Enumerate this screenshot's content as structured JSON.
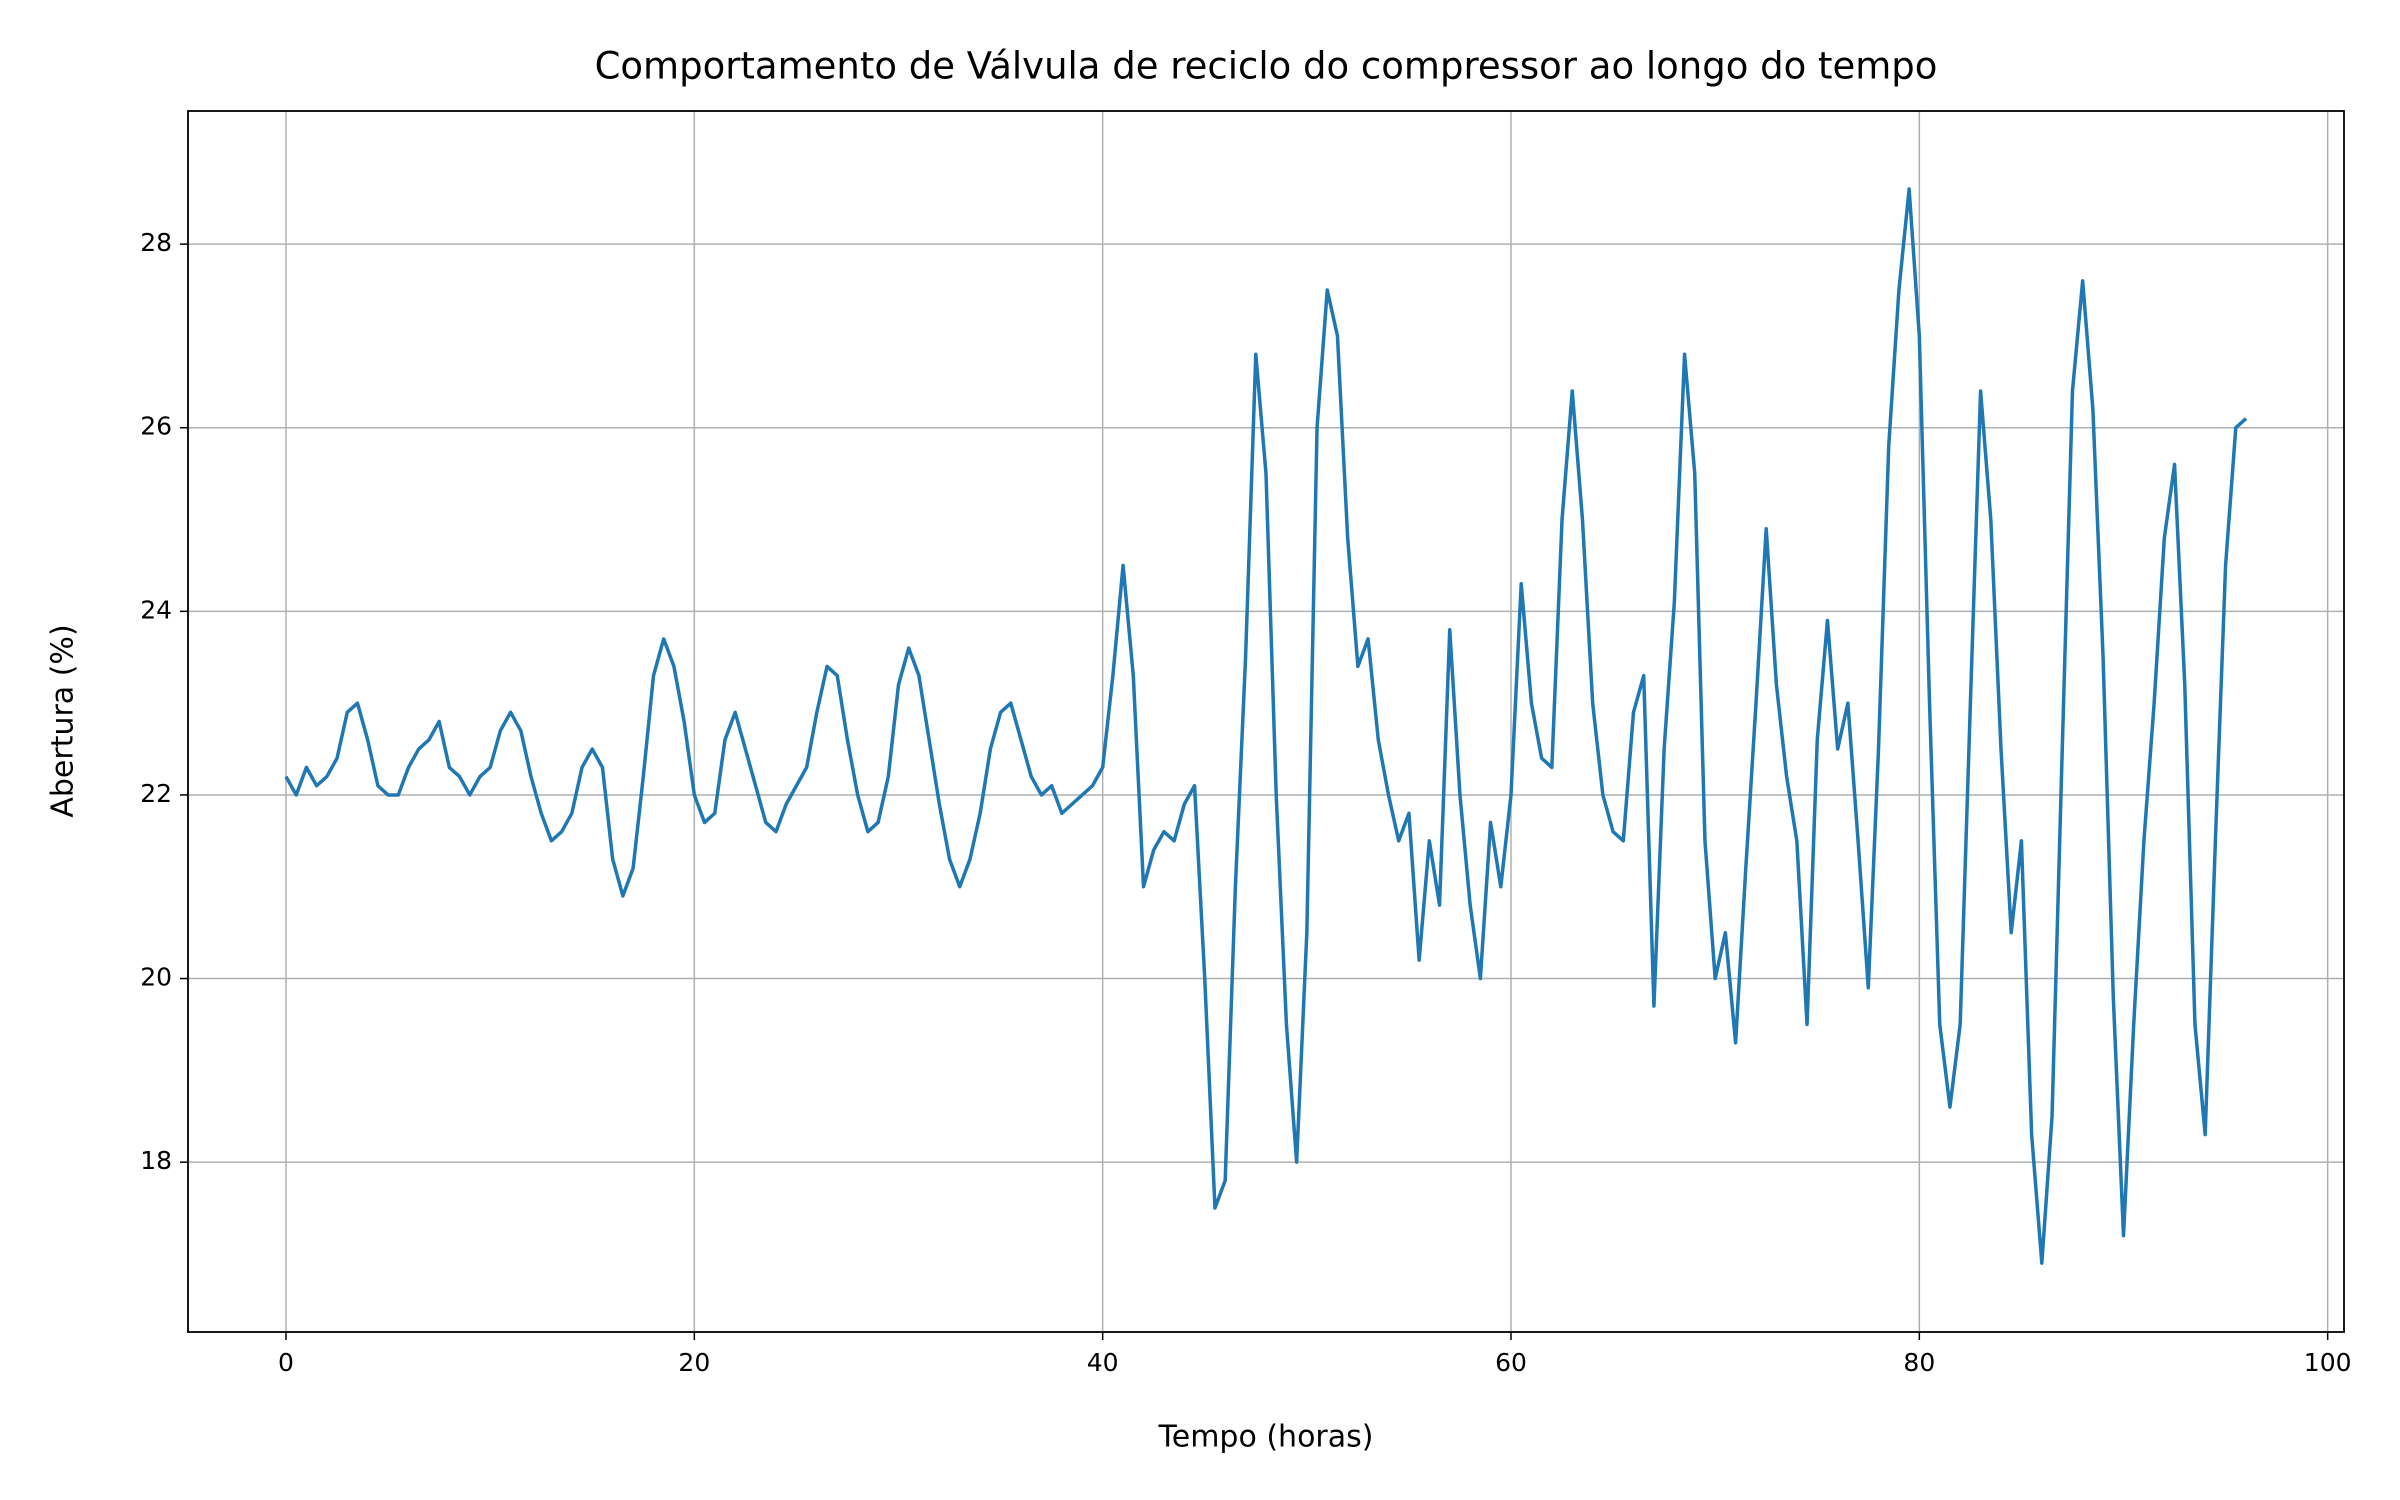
{
  "chart_data": {
    "type": "line",
    "title": "Comportamento de Válvula de reciclo do compressor ao longo do tempo",
    "x_label": "Tempo (horas)",
    "y_label": "Abertura (%)",
    "xlim": [
      -4.8,
      100.8
    ],
    "ylim": [
      16.15,
      29.45
    ],
    "xticks": [
      0,
      20,
      40,
      60,
      80,
      100
    ],
    "yticks": [
      18,
      20,
      22,
      24,
      26,
      28
    ],
    "grid": true,
    "x": [
      0,
      0.5,
      1,
      1.5,
      2,
      2.5,
      3,
      3.5,
      4,
      4.5,
      5,
      5.5,
      6,
      6.5,
      7,
      7.5,
      8,
      8.5,
      9,
      9.5,
      10,
      10.5,
      11,
      11.5,
      12,
      12.5,
      13,
      13.5,
      14,
      14.5,
      15,
      15.5,
      16,
      16.5,
      17,
      17.5,
      18,
      18.5,
      19,
      19.5,
      20,
      20.5,
      21,
      21.5,
      22,
      22.5,
      23,
      23.5,
      24,
      24.5,
      25,
      25.5,
      26,
      26.5,
      27,
      27.5,
      28,
      28.5,
      29,
      29.5,
      30,
      30.5,
      31,
      31.5,
      32,
      32.5,
      33,
      33.5,
      34,
      34.5,
      35,
      35.5,
      36,
      36.5,
      37,
      37.5,
      38,
      38.5,
      39,
      39.5,
      40,
      40.5,
      41,
      41.5,
      42,
      42.5,
      43,
      43.5,
      44,
      44.5,
      45,
      45.5,
      46,
      46.5,
      47,
      47.5,
      48,
      48.5,
      49,
      49.5,
      50,
      50.5,
      51,
      51.5,
      52,
      52.5,
      53,
      53.5,
      54,
      54.5,
      55,
      55.5,
      56,
      56.5,
      57,
      57.5,
      58,
      58.5,
      59,
      59.5,
      60,
      60.5,
      61,
      61.5,
      62,
      62.5,
      63,
      63.5,
      64,
      64.5,
      65,
      65.5,
      66,
      66.5,
      67,
      67.5,
      68,
      68.5,
      69,
      69.5,
      70,
      70.5,
      71,
      71.5,
      72,
      72.5,
      73,
      73.5,
      74,
      74.5,
      75,
      75.5,
      76,
      76.5,
      77,
      77.5,
      78,
      78.5,
      79,
      79.5,
      80,
      80.5,
      81,
      81.5,
      82,
      82.5,
      83,
      83.5,
      84,
      84.5,
      85,
      85.5,
      86,
      86.5,
      87,
      87.5,
      88,
      88.5,
      89,
      89.5,
      90,
      90.5,
      91,
      91.5,
      92,
      92.5,
      93,
      93.5,
      94,
      94.5,
      95,
      95.5,
      96
    ],
    "series": [
      {
        "name": "Válvula de reciclo do compressor",
        "color": "#1f77b4",
        "values": [
          22.2,
          22.0,
          22.3,
          22.1,
          22.2,
          22.4,
          22.9,
          23.0,
          22.6,
          22.1,
          22.0,
          22.0,
          22.3,
          22.5,
          22.6,
          22.8,
          22.3,
          22.2,
          22.0,
          22.2,
          22.3,
          22.7,
          22.9,
          22.7,
          22.2,
          21.8,
          21.5,
          21.6,
          21.8,
          22.3,
          22.5,
          22.3,
          21.3,
          20.9,
          21.2,
          22.2,
          23.3,
          23.7,
          23.4,
          22.8,
          22.0,
          21.7,
          21.8,
          22.6,
          22.9,
          22.5,
          22.1,
          21.7,
          21.6,
          21.9,
          22.1,
          22.3,
          22.9,
          23.4,
          23.3,
          22.6,
          22.0,
          21.6,
          21.7,
          22.2,
          23.2,
          23.6,
          23.3,
          22.6,
          21.9,
          21.3,
          21.0,
          21.3,
          21.8,
          22.5,
          22.9,
          23.0,
          22.6,
          22.2,
          22.0,
          22.1,
          21.8,
          21.9,
          22.0,
          22.1,
          22.3,
          23.3,
          24.5,
          23.3,
          21.0,
          21.4,
          21.6,
          21.5,
          21.9,
          22.1,
          20.0,
          17.5,
          17.8,
          21.0,
          23.5,
          26.8,
          25.5,
          22.0,
          19.5,
          18.0,
          20.5,
          26.0,
          27.5,
          27.0,
          24.8,
          23.4,
          23.7,
          22.6,
          22.0,
          21.5,
          21.8,
          20.2,
          21.5,
          20.8,
          23.8,
          22.0,
          20.8,
          20.0,
          21.7,
          21.0,
          22.0,
          24.3,
          23.0,
          22.4,
          22.3,
          25.0,
          26.4,
          25.0,
          23.0,
          22.0,
          21.6,
          21.5,
          22.9,
          23.3,
          19.7,
          22.5,
          24.1,
          26.8,
          25.5,
          21.5,
          20.0,
          20.5,
          19.3,
          21.2,
          23.0,
          24.9,
          23.2,
          22.2,
          21.5,
          19.5,
          22.6,
          23.9,
          22.5,
          23.0,
          21.5,
          19.9,
          22.5,
          25.8,
          27.5,
          28.6,
          27.0,
          23.0,
          19.5,
          18.6,
          19.5,
          23.0,
          26.4,
          25.0,
          22.5,
          20.5,
          21.5,
          18.3,
          16.9,
          18.5,
          22.5,
          26.4,
          27.6,
          26.2,
          23.5,
          19.8,
          17.2,
          19.5,
          21.5,
          23.0,
          24.8,
          25.6,
          23.2,
          19.5,
          18.3,
          21.5,
          24.5,
          26.0,
          26.1
        ]
      }
    ]
  }
}
